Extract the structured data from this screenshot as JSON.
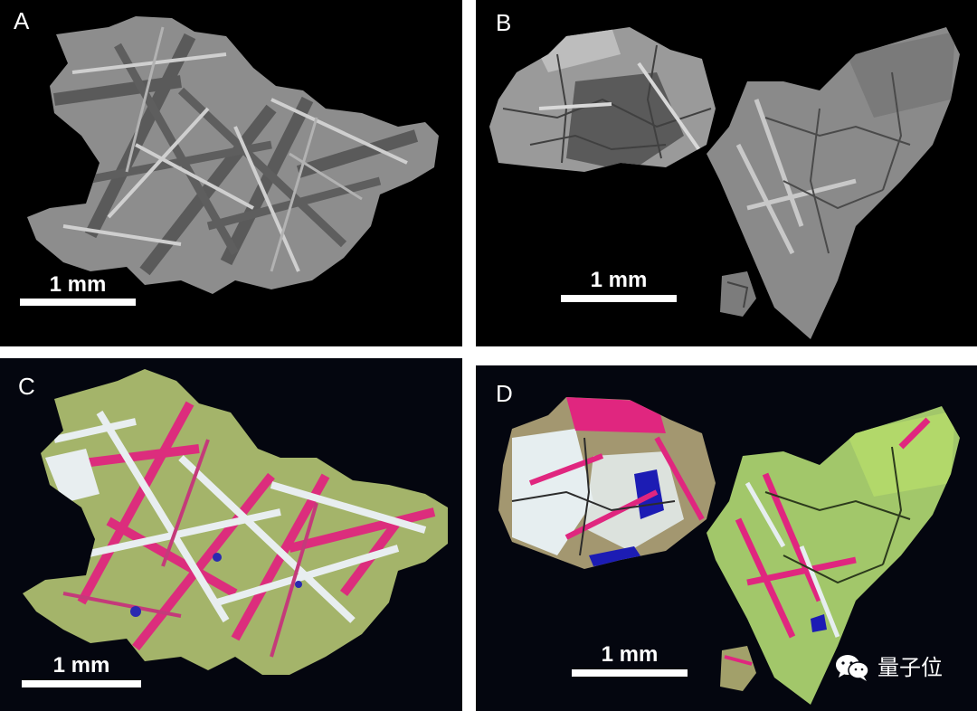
{
  "panels": [
    {
      "label": "A",
      "scale": "1 mm"
    },
    {
      "label": "B",
      "scale": "1 mm"
    },
    {
      "label": "C",
      "scale": "1 mm"
    },
    {
      "label": "D",
      "scale": "1 mm"
    }
  ],
  "watermark": {
    "text": "量子位",
    "icon": "wechat-icon"
  },
  "colors": {
    "background": "#000000",
    "bse_gray": "#8f8f8f",
    "map_green": "#a4b66a",
    "map_magenta": "#e0267f",
    "map_white": "#e6eef0",
    "map_blue": "#1c1cb4"
  }
}
